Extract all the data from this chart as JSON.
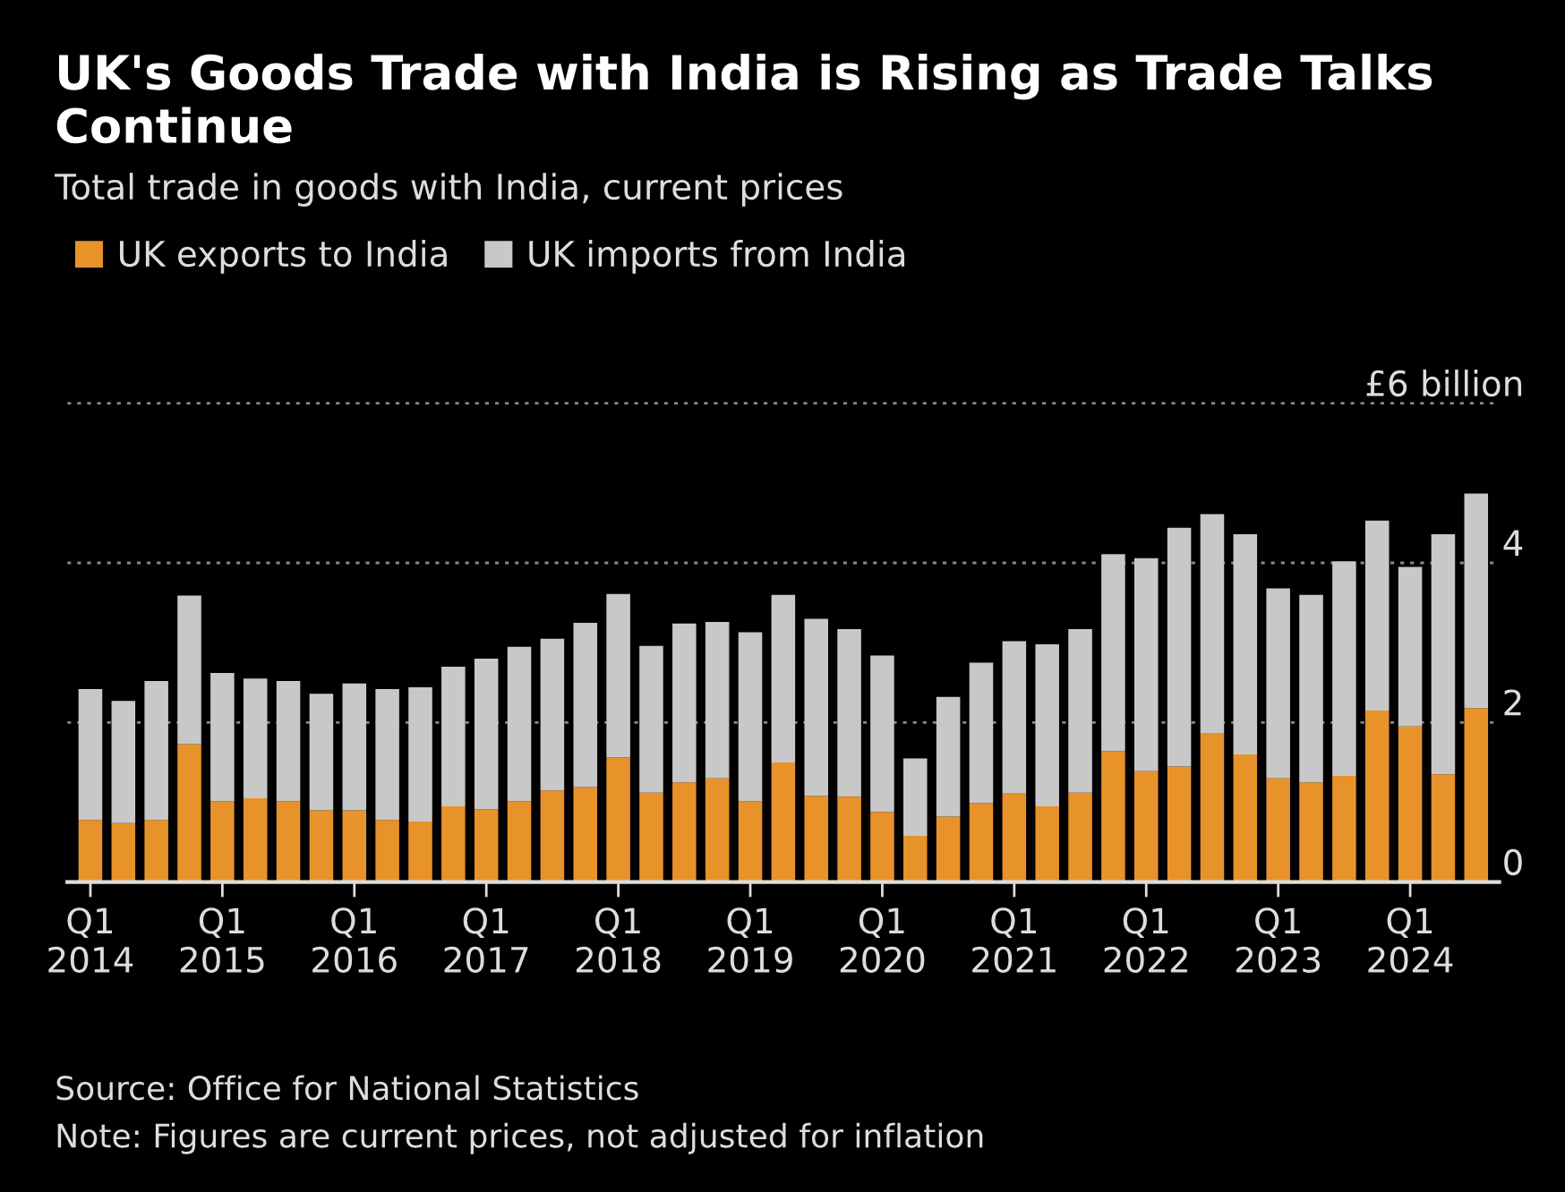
{
  "chart_data": {
    "type": "bar",
    "title": "UK's Goods Trade with India is Rising as Trade Talks Continue",
    "subtitle": "Total trade in goods with India, current prices",
    "categories": [
      "Q1\n2014",
      null,
      null,
      null,
      "Q1\n2015",
      null,
      null,
      null,
      "Q1\n2016",
      null,
      null,
      null,
      "Q1\n2017",
      null,
      null,
      null,
      "Q1\n2018",
      null,
      null,
      null,
      "Q1\n2019",
      null,
      null,
      null,
      "Q1\n2020",
      null,
      null,
      null,
      "Q1\n2021",
      null,
      null,
      null,
      "Q1\n2022",
      null,
      null,
      null,
      "Q1\n2023",
      null,
      null,
      null,
      "Q1\n2024",
      null,
      null
    ],
    "stacked": true,
    "series": [
      {
        "name": "UK exports to India",
        "color": "#e8922a",
        "values": [
          0.78,
          0.74,
          0.78,
          1.73,
          1.01,
          1.05,
          1.01,
          0.9,
          0.9,
          0.78,
          0.76,
          0.95,
          0.91,
          1.01,
          1.15,
          1.19,
          1.56,
          1.12,
          1.25,
          1.3,
          1.01,
          1.5,
          1.08,
          1.07,
          0.88,
          0.58,
          0.82,
          0.99,
          1.11,
          0.95,
          1.12,
          1.64,
          1.39,
          1.45,
          1.86,
          1.6,
          1.3,
          1.25,
          1.33,
          2.15,
          1.95,
          1.35,
          2.18
        ]
      },
      {
        "name": "UK imports from India",
        "color": "#c8c8c8",
        "values": [
          1.64,
          1.53,
          1.74,
          1.86,
          1.61,
          1.5,
          1.51,
          1.46,
          1.59,
          1.64,
          1.68,
          1.75,
          1.89,
          1.94,
          1.9,
          2.06,
          2.05,
          1.84,
          1.99,
          1.96,
          2.12,
          2.1,
          2.22,
          2.1,
          1.96,
          0.97,
          1.5,
          1.76,
          1.91,
          2.03,
          2.05,
          2.47,
          2.67,
          2.99,
          2.75,
          2.76,
          2.38,
          2.35,
          2.69,
          2.38,
          2.0,
          3.01,
          2.69
        ]
      }
    ],
    "ylim": [
      0,
      6.05
    ],
    "yticks": [
      0,
      2,
      4,
      {
        "value": 6,
        "label": "£6 billion"
      }
    ],
    "grid": "y",
    "legend": "top left",
    "annotations": [
      "Source: Office for National Statistics",
      "Note: Figures are current prices, not adjusted for inflation"
    ]
  }
}
